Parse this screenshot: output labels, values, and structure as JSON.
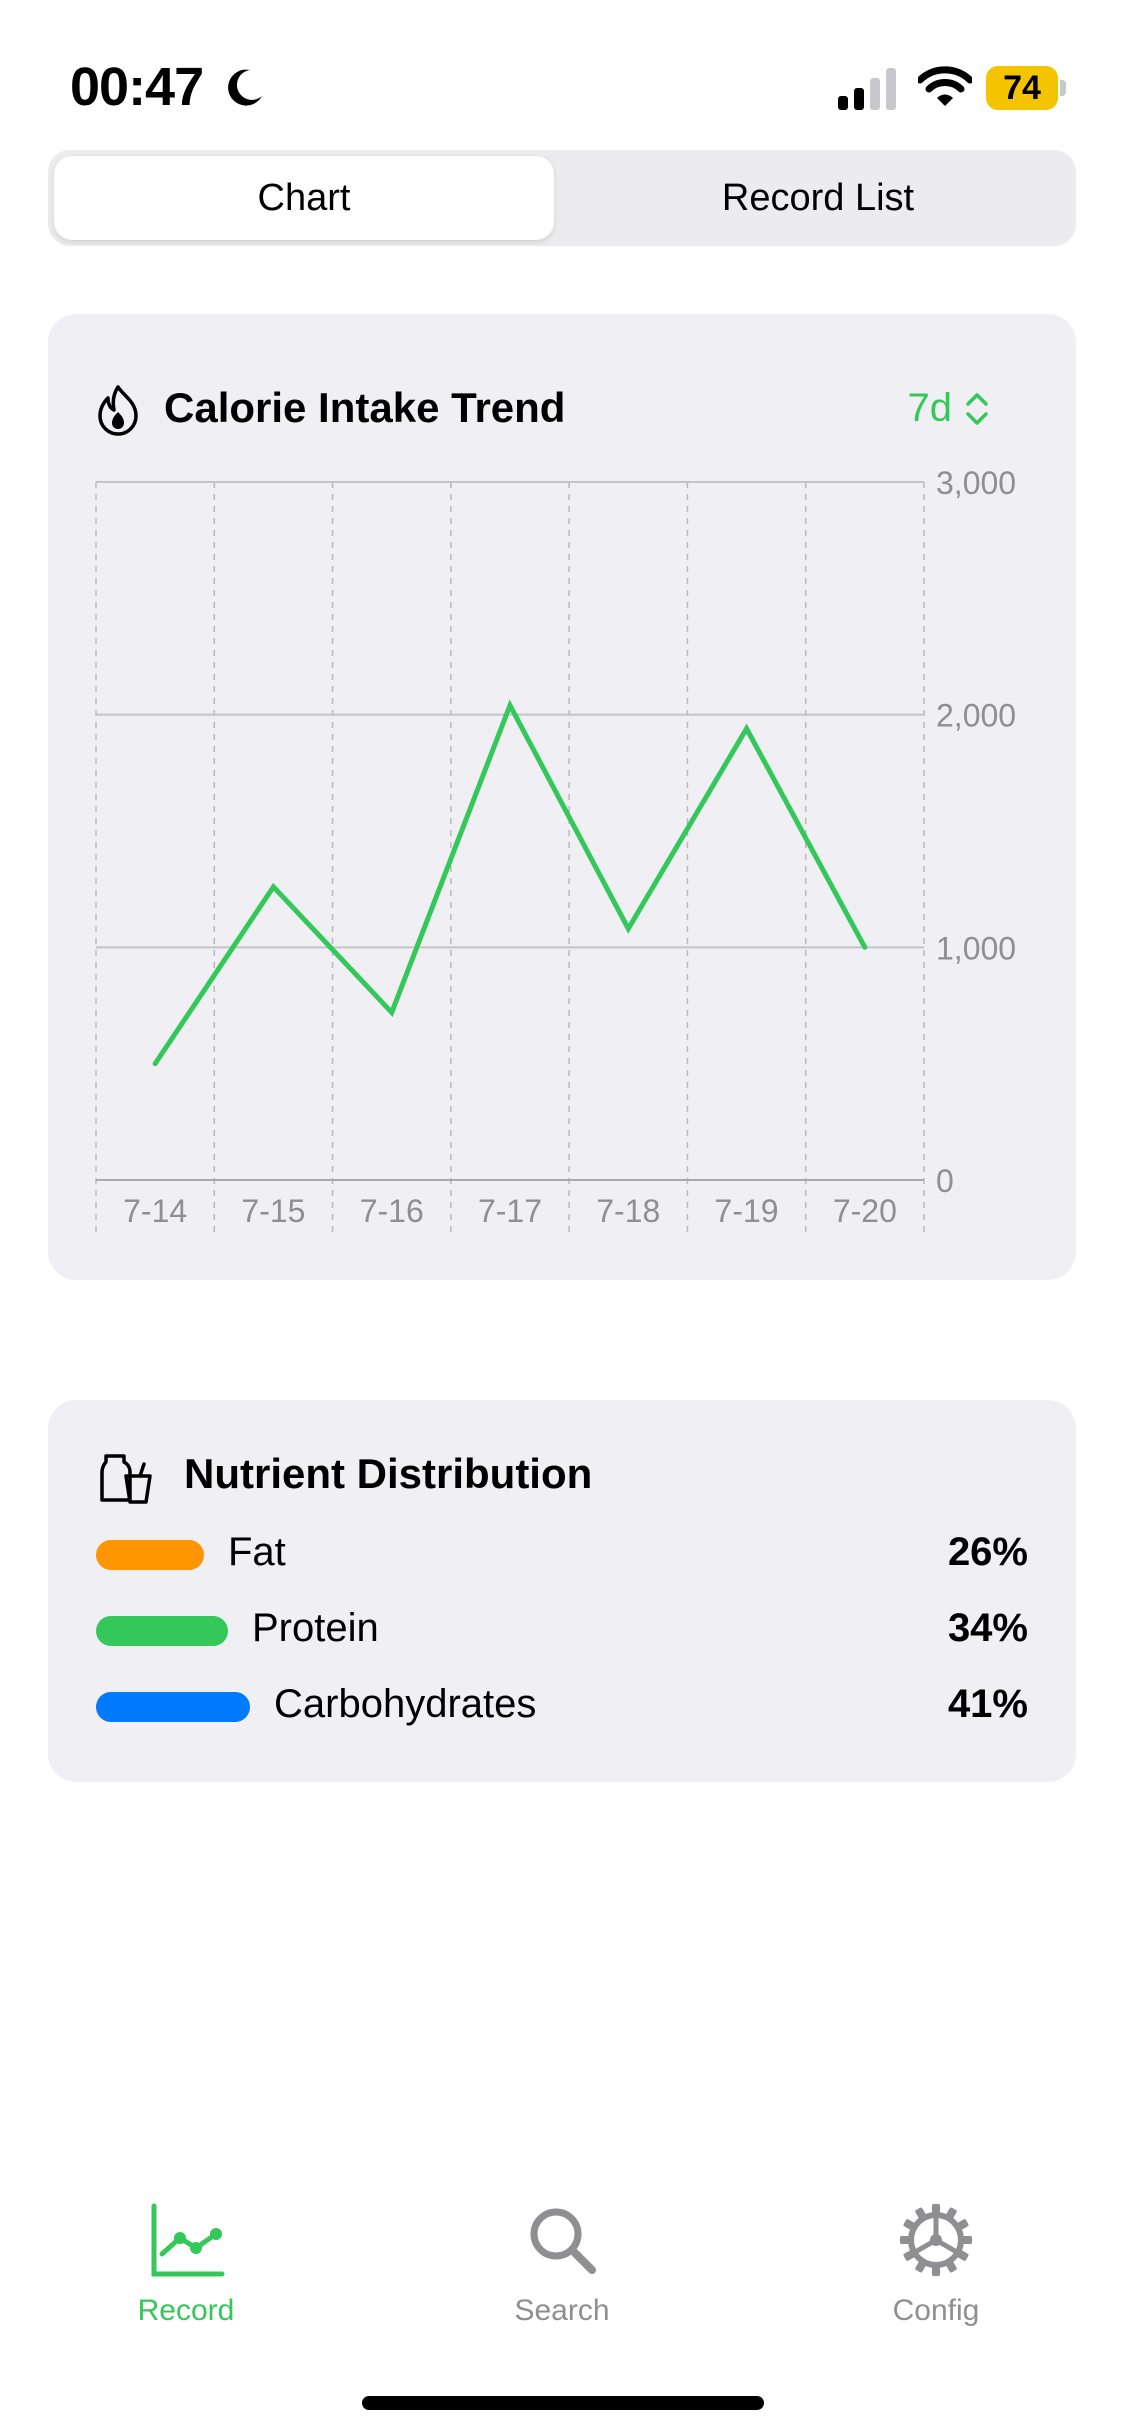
{
  "status": {
    "time": "00:47",
    "battery": "74"
  },
  "segments": {
    "chart": "Chart",
    "record_list": "Record List"
  },
  "calorie_card": {
    "title": "Calorie Intake Trend",
    "range": "7d"
  },
  "chart_data": {
    "type": "line",
    "x": [
      "7-14",
      "7-15",
      "7-16",
      "7-17",
      "7-18",
      "7-19",
      "7-20"
    ],
    "series": [
      {
        "values": [
          500,
          1260,
          720,
          2040,
          1080,
          1940,
          1000
        ]
      }
    ],
    "ylim": [
      0,
      3000
    ],
    "yticks": [
      "0",
      "1,000",
      "2,000",
      "3,000"
    ],
    "grid": true,
    "color": "#34c759"
  },
  "nutrients": {
    "title": "Nutrient Distribution",
    "items": [
      {
        "name": "Fat",
        "percent": "26%",
        "color": "#ff9500"
      },
      {
        "name": "Protein",
        "percent": "34%",
        "color": "#34c759"
      },
      {
        "name": "Carbohydrates",
        "percent": "41%",
        "color": "#007aff"
      }
    ]
  },
  "tabs": [
    {
      "label": "Record",
      "icon": "chart-line-icon",
      "active": true
    },
    {
      "label": "Search",
      "icon": "search-icon",
      "active": false
    },
    {
      "label": "Config",
      "icon": "gear-icon",
      "active": false
    }
  ],
  "colors": {
    "accent": "#34c759",
    "inactive": "#8e8e93"
  }
}
